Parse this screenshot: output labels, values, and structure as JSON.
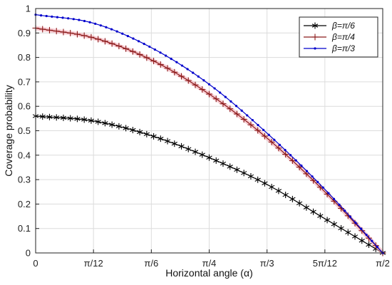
{
  "chart_data": {
    "type": "line",
    "xlabel": "Horizontal angle (α)",
    "ylabel": "Coverage probability",
    "xlim": [
      0,
      1.5708
    ],
    "ylim": [
      0,
      1
    ],
    "grid": true,
    "legend_position": "top-right",
    "x_ticks": [
      {
        "value": 0,
        "label": "0"
      },
      {
        "value": 0.2618,
        "label": "π/12"
      },
      {
        "value": 0.5236,
        "label": "π/6"
      },
      {
        "value": 0.7854,
        "label": "π/4"
      },
      {
        "value": 1.0472,
        "label": "π/3"
      },
      {
        "value": 1.309,
        "label": "5π/12"
      },
      {
        "value": 1.5708,
        "label": "π/2"
      }
    ],
    "y_ticks": [
      {
        "value": 0,
        "label": "0"
      },
      {
        "value": 0.1,
        "label": "0.1"
      },
      {
        "value": 0.2,
        "label": "0.2"
      },
      {
        "value": 0.3,
        "label": "0.3"
      },
      {
        "value": 0.4,
        "label": "0.4"
      },
      {
        "value": 0.5,
        "label": "0.5"
      },
      {
        "value": 0.6,
        "label": "0.6"
      },
      {
        "value": 0.7,
        "label": "0.7"
      },
      {
        "value": 0.8,
        "label": "0.8"
      },
      {
        "value": 0.9,
        "label": "0.9"
      },
      {
        "value": 1,
        "label": "1"
      }
    ],
    "series": [
      {
        "name": "β=π/6",
        "color": "#000000",
        "marker": "asterisk",
        "x": [
          0,
          0.2618,
          0.5236,
          0.7854,
          1.0472,
          1.309,
          1.5708
        ],
        "values": [
          0.56,
          0.54,
          0.48,
          0.39,
          0.28,
          0.14,
          0
        ]
      },
      {
        "name": "β=π/4",
        "color": "#8b1a1a",
        "marker": "plus",
        "x": [
          0,
          0.2618,
          0.5236,
          0.7854,
          1.0472,
          1.309,
          1.5708
        ],
        "values": [
          0.92,
          0.88,
          0.79,
          0.65,
          0.47,
          0.25,
          0
        ]
      },
      {
        "name": "β=π/3",
        "color": "#0000cc",
        "marker": "dot",
        "x": [
          0,
          0.2618,
          0.5236,
          0.7854,
          1.0472,
          1.309,
          1.5708
        ],
        "values": [
          0.975,
          0.94,
          0.84,
          0.69,
          0.49,
          0.26,
          0
        ]
      }
    ]
  }
}
